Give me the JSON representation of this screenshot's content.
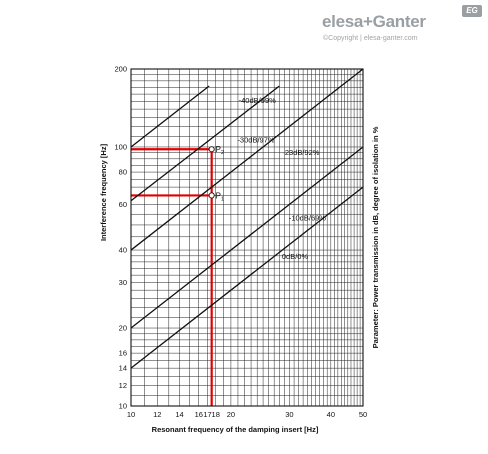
{
  "logo": {
    "brand": "elesa+Ganter",
    "badge": "EG",
    "copyright": "©Copyright | elesa-ganter.com"
  },
  "chart_data": {
    "type": "line",
    "xlabel": "Resonant frequency of the damping insert [Hz]",
    "ylabel": "Interference frequency [Hz]",
    "ylabel_right": "Parameter: Power transmission in dB, degree of isolation in %",
    "x_scale": "log",
    "y_scale": "log",
    "xlim": [
      10,
      50
    ],
    "ylim": [
      10,
      200
    ],
    "x_ticks": [
      10,
      12,
      14,
      16,
      17,
      18,
      20,
      30,
      40,
      50
    ],
    "y_ticks": [
      10,
      12,
      14,
      16,
      20,
      30,
      40,
      60,
      80,
      100,
      200
    ],
    "grid": true,
    "series": [
      {
        "name": "-40dB/99%",
        "x": [
          10,
          17.2
        ],
        "y": [
          100,
          172
        ]
      },
      {
        "name": "-30dB/97%",
        "x": [
          10,
          28
        ],
        "y": [
          62,
          172
        ]
      },
      {
        "name": "-23dB/92%",
        "x": [
          10,
          50
        ],
        "y": [
          40,
          200
        ]
      },
      {
        "name": "-10dB/69%",
        "x": [
          10,
          50
        ],
        "y": [
          20,
          100
        ]
      },
      {
        "name": "0dB/0%",
        "x": [
          10,
          50
        ],
        "y": [
          14,
          70
        ]
      }
    ],
    "markers": [
      {
        "label": "P",
        "sub": "2",
        "x": 17.5,
        "y": 98
      },
      {
        "label": "P",
        "sub": "1",
        "x": 17.5,
        "y": 65
      }
    ],
    "guides": [
      {
        "from": [
          10,
          98
        ],
        "to": [
          17.5,
          98
        ]
      },
      {
        "from": [
          10,
          65
        ],
        "to": [
          17.5,
          65
        ]
      },
      {
        "from": [
          17.5,
          98
        ],
        "to": [
          17.5,
          10
        ]
      }
    ],
    "colors": {
      "lines": "#111111",
      "grid": "#222222",
      "guides": "#e00000"
    }
  }
}
